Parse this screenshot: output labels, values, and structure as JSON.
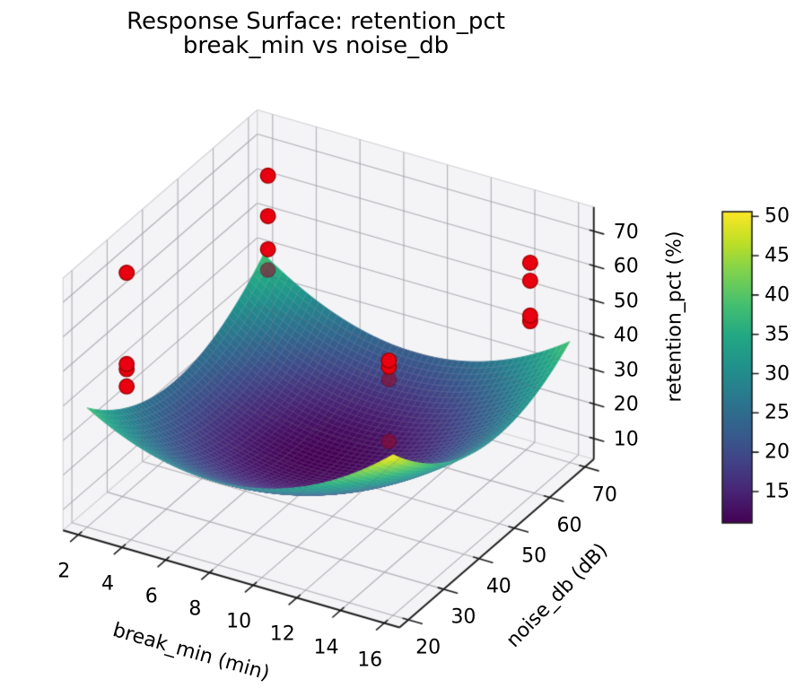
{
  "chart_data": {
    "type": "surface3d",
    "title": "Response Surface: retention_pct",
    "subtitle": "break_min vs noise_db",
    "view": {
      "azim": -60,
      "elev": 30
    },
    "axes": {
      "x": {
        "label": "break_min (min)",
        "ticks": [
          2,
          4,
          6,
          8,
          10,
          12,
          14,
          16
        ],
        "lim": [
          1.3,
          16.7
        ]
      },
      "y": {
        "label": "noise_db (dB)",
        "ticks": [
          20,
          30,
          40,
          50,
          60,
          70
        ],
        "lim": [
          17.5,
          72.5
        ]
      },
      "z": {
        "label": "retention_pct (%)",
        "ticks": [
          10,
          20,
          30,
          40,
          50,
          60,
          70
        ],
        "lim": [
          4,
          77
        ]
      }
    },
    "surface": {
      "desc": "quadratic response surface z = c + pu*u + qv*v + auu*u^2 + bvv*v^2 + duv*u*v, u=(x-x0)/xs, v=(y-y0)/ys",
      "coef": {
        "c": 11.3,
        "pu": 3.05,
        "qv": -2.8,
        "auu": 16.0,
        "bvv": 14.4,
        "duv": -2.95,
        "x0": 9,
        "xs": 7,
        "y0": 45,
        "ys": 25
      },
      "x_range": [
        2,
        16
      ],
      "y_range": [
        20,
        70
      ],
      "z_min": 11.0,
      "z_max": 50.6,
      "corner_values": {
        "x2_y20": 38.5,
        "x16_y20": 50.5,
        "x2_y70": 38.8,
        "x16_y70": 39.0
      },
      "grid_divisions": 50,
      "colormap": "viridis"
    },
    "colorbar": {
      "ticks": [
        15,
        20,
        25,
        30,
        35,
        40,
        45,
        50
      ],
      "vmin": 11.0,
      "vmax": 50.6
    },
    "scatter": {
      "color": "#e90011",
      "edge_color": "#9a0000",
      "occluded_color": "rgba(143,10,45,0.62)",
      "occluded_edge": "rgba(80,0,25,0.45)",
      "radius": 8.3,
      "points": [
        {
          "break_min": 3,
          "noise_db": 25,
          "retention_pct": 75.0,
          "occluded": false
        },
        {
          "break_min": 3,
          "noise_db": 25,
          "retention_pct": 48.6,
          "occluded": false
        },
        {
          "break_min": 3,
          "noise_db": 25,
          "retention_pct": 47.1,
          "occluded": false
        },
        {
          "break_min": 3,
          "noise_db": 25,
          "retention_pct": 42.1,
          "occluded": false
        },
        {
          "break_min": 3,
          "noise_db": 65,
          "retention_pct": 67.7,
          "occluded": false
        },
        {
          "break_min": 3,
          "noise_db": 65,
          "retention_pct": 56.0,
          "occluded": false
        },
        {
          "break_min": 3,
          "noise_db": 65,
          "retention_pct": 46.4,
          "occluded": false
        },
        {
          "break_min": 3,
          "noise_db": 65,
          "retention_pct": 40.4,
          "occluded": true
        },
        {
          "break_min": 15,
          "noise_db": 25,
          "retention_pct": 71.5,
          "occluded": false
        },
        {
          "break_min": 15,
          "noise_db": 25,
          "retention_pct": 69.7,
          "occluded": false
        },
        {
          "break_min": 15,
          "noise_db": 25,
          "retention_pct": 66.0,
          "occluded": true
        },
        {
          "break_min": 15,
          "noise_db": 25,
          "retention_pct": 48.1,
          "occluded": true
        },
        {
          "break_min": 15,
          "noise_db": 65,
          "retention_pct": 64.4,
          "occluded": false
        },
        {
          "break_min": 15,
          "noise_db": 65,
          "retention_pct": 59.2,
          "occluded": false
        },
        {
          "break_min": 15,
          "noise_db": 65,
          "retention_pct": 49.1,
          "occluded": false
        },
        {
          "break_min": 15,
          "noise_db": 65,
          "retention_pct": 47.5,
          "occluded": false
        }
      ]
    },
    "colormap_stops": [
      [
        0.0,
        "#440154"
      ],
      [
        0.1,
        "#482475"
      ],
      [
        0.2,
        "#414487"
      ],
      [
        0.3,
        "#355f8d"
      ],
      [
        0.4,
        "#2a788e"
      ],
      [
        0.5,
        "#21918c"
      ],
      [
        0.6,
        "#22a884"
      ],
      [
        0.7,
        "#44bf70"
      ],
      [
        0.8,
        "#7ad151"
      ],
      [
        0.9,
        "#bddf26"
      ],
      [
        1.0,
        "#fde725"
      ]
    ],
    "style": {
      "pane_color": "#f4f4f6",
      "pane_edge_color": "#d2d2d7",
      "grid_color": "#c6c6cb",
      "grid_over_surface_color": "rgba(100,100,112,0.20)",
      "axisline_color": "#1c1c1c",
      "mesh_line_color": "rgba(255,255,255,0.22)"
    }
  }
}
